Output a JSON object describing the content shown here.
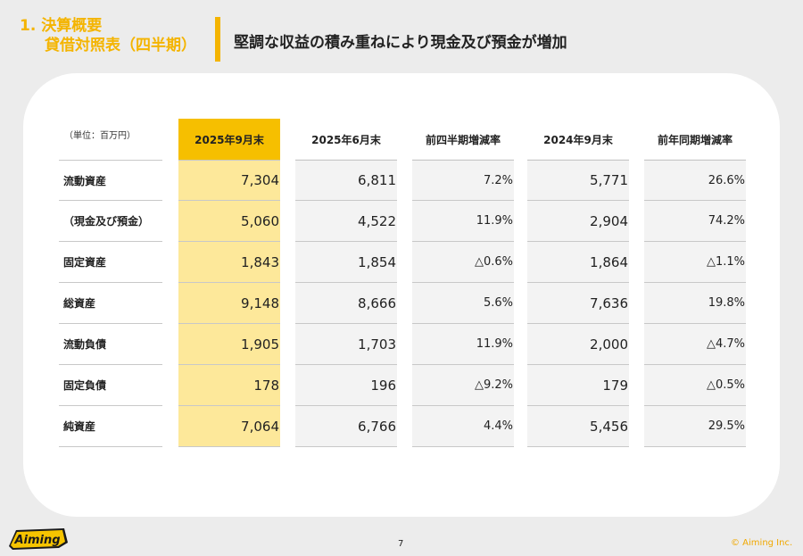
{
  "section": {
    "line1": "1. 決算概要",
    "line2": "貸借対照表（四半期）"
  },
  "headline": "堅調な収益の積み重ねにより現金及び預金が増加",
  "accent_color": "#f4b400",
  "highlight_color": "#f6bf00",
  "table": {
    "unit": "（単位：百万円）",
    "columns": [
      "2025年9月末",
      "2025年6月末",
      "前四半期増減率",
      "2024年9月末",
      "前年同期増減率"
    ],
    "rows": [
      {
        "label": "流動資産",
        "values": [
          "7,304",
          "6,811",
          "7.2%",
          "5,771",
          "26.6%"
        ]
      },
      {
        "label": "（現金及び預金）",
        "values": [
          "5,060",
          "4,522",
          "11.9%",
          "2,904",
          "74.2%"
        ]
      },
      {
        "label": "固定資産",
        "values": [
          "1,843",
          "1,854",
          "△0.6%",
          "1,864",
          "△1.1%"
        ]
      },
      {
        "label": "総資産",
        "values": [
          "9,148",
          "8,666",
          "5.6%",
          "7,636",
          "19.8%"
        ]
      },
      {
        "label": "流動負債",
        "values": [
          "1,905",
          "1,703",
          "11.9%",
          "2,000",
          "△4.7%"
        ]
      },
      {
        "label": "固定負債",
        "values": [
          "178",
          "196",
          "△9.2%",
          "179",
          "△0.5%"
        ]
      },
      {
        "label": "純資産",
        "values": [
          "7,064",
          "6,766",
          "4.4%",
          "5,456",
          "29.5%"
        ]
      }
    ]
  },
  "footer": {
    "logo_text": "Aiming",
    "page_number": "7",
    "copyright": "© Aiming Inc."
  }
}
